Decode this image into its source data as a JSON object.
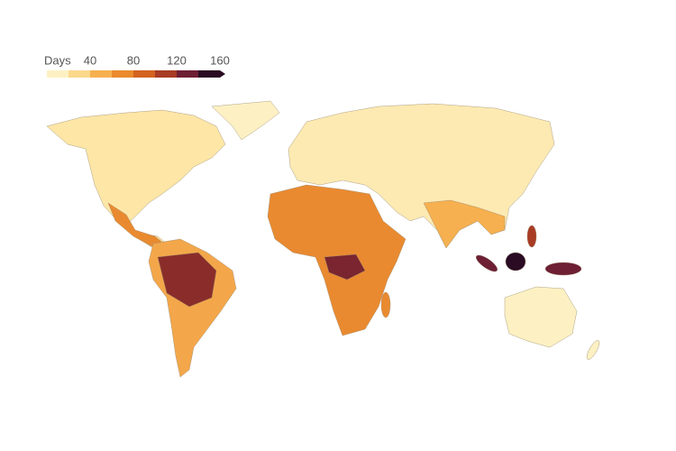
{
  "legend": {
    "title": "Days",
    "ticks": [
      40,
      80,
      120,
      160
    ],
    "bins": [
      0,
      20,
      40,
      60,
      80,
      100,
      120,
      140,
      160
    ],
    "colors": [
      "#fdf1c3",
      "#fbd88c",
      "#f6b04f",
      "#ea8a2c",
      "#d3631f",
      "#a83c25",
      "#6e1f34",
      "#2a0b23"
    ]
  }
}
